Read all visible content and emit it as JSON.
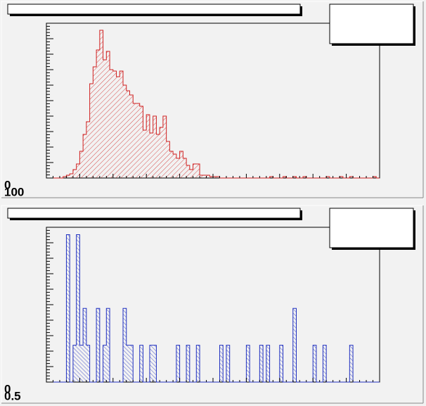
{
  "chart_data": [
    {
      "type": "histogram",
      "color": "#d02020",
      "values": [
        0,
        0,
        0,
        0,
        0,
        1,
        2,
        3,
        6,
        10,
        19,
        31,
        40,
        67,
        79,
        91,
        105,
        84,
        90,
        77,
        76,
        72,
        76,
        66,
        62,
        59,
        53,
        53,
        51,
        34,
        45,
        32,
        44,
        31,
        36,
        44,
        26,
        19,
        17,
        14,
        19,
        14,
        9,
        6,
        10,
        10,
        2,
        2,
        2,
        1,
        1,
        1,
        0,
        0,
        0,
        0,
        0,
        0,
        0,
        0,
        0,
        0,
        0,
        0,
        0,
        0,
        0,
        1,
        0,
        0,
        0,
        1,
        0,
        0,
        1,
        0,
        0,
        1,
        0,
        0,
        0,
        0,
        0,
        0,
        1,
        0,
        0,
        0,
        1,
        0,
        0,
        1,
        0,
        0,
        0,
        0,
        0,
        0,
        1,
        0
      ],
      "ylim": [
        0,
        110
      ],
      "axis_labels": [
        "0",
        "100"
      ]
    },
    {
      "type": "histogram",
      "color": "#2030c0",
      "values": [
        0,
        0,
        0,
        0,
        0,
        0,
        8,
        0,
        2,
        8,
        2,
        4,
        2,
        0,
        0,
        4,
        0,
        2,
        4,
        0,
        0,
        0,
        0,
        4,
        2,
        2,
        0,
        0,
        2,
        0,
        0,
        2,
        2,
        0,
        0,
        0,
        0,
        0,
        0,
        2,
        0,
        0,
        2,
        0,
        0,
        2,
        0,
        0,
        0,
        0,
        0,
        0,
        2,
        0,
        2,
        0,
        0,
        0,
        0,
        0,
        2,
        0,
        0,
        0,
        2,
        0,
        2,
        0,
        0,
        0,
        2,
        0,
        0,
        0,
        4,
        0,
        0,
        0,
        0,
        0,
        2,
        0,
        0,
        2,
        0,
        0,
        0,
        0,
        0,
        0,
        0,
        2,
        0,
        0,
        0,
        0,
        0,
        0,
        0,
        0
      ],
      "ylim": [
        0,
        8.4
      ],
      "axis_labels": [
        "0",
        "0.5"
      ]
    }
  ]
}
